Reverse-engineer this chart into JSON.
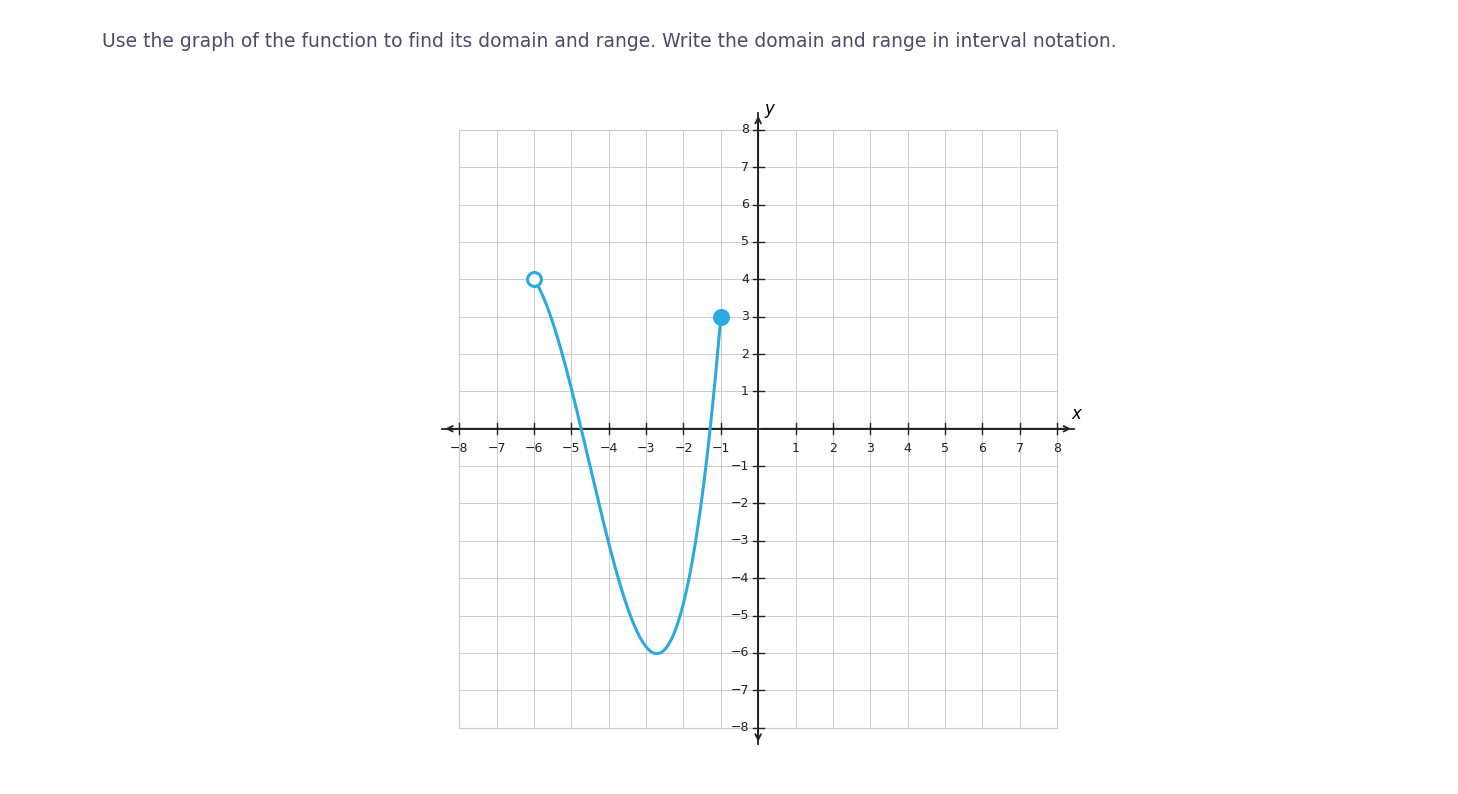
{
  "title": "Use the graph of the function to find its domain and range. Write the domain and range in interval notation.",
  "title_color": "#4a4a6a",
  "title_fontsize": 13.5,
  "curve_color": "#29abe2",
  "curve_linewidth": 2.2,
  "open_circle": [
    -6,
    4
  ],
  "closed_circle": [
    -1,
    3
  ],
  "min_point": [
    -3,
    -6
  ],
  "x_min": -8,
  "x_max": 8,
  "y_min": -8,
  "y_max": 8,
  "background_color": "#ffffff",
  "grid_color": "#cccccc",
  "axis_color": "#222222",
  "tick_labels_x": [
    -8,
    -7,
    -6,
    -5,
    -4,
    -3,
    -2,
    -1,
    1,
    2,
    3,
    4,
    5,
    6,
    7,
    8
  ],
  "tick_labels_y": [
    -8,
    -7,
    -6,
    -5,
    -4,
    -3,
    -2,
    -1,
    1,
    2,
    3,
    4,
    5,
    6,
    7,
    8
  ]
}
